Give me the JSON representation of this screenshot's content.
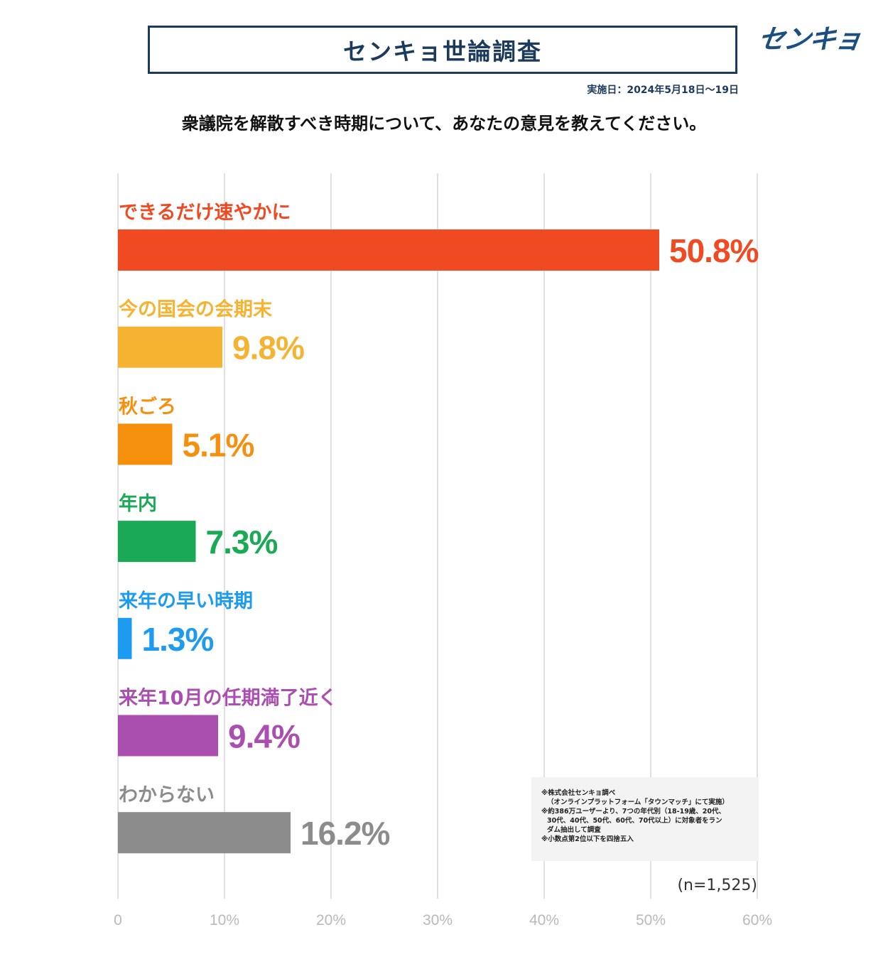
{
  "header": {
    "title": "センキョ世論調査",
    "logo_text": "センキョ",
    "date": "実施日：2024年5月18日～19日",
    "question": "衆議院を解散すべき時期について、あなたの意見を教えてください。"
  },
  "chart_data": {
    "type": "bar",
    "orientation": "horizontal",
    "categories": [
      "できるだけ速やかに",
      "今の国会の会期末",
      "秋ごろ",
      "年内",
      "来年の早い時期",
      "来年10月の任期満了近く",
      "わからない"
    ],
    "values": [
      50.8,
      9.8,
      5.1,
      7.3,
      1.3,
      9.4,
      16.2
    ],
    "value_labels": [
      "50.8%",
      "9.8%",
      "5.1%",
      "7.3%",
      "1.3%",
      "9.4%",
      "16.2%"
    ],
    "colors": [
      "#f04a23",
      "#f6b332",
      "#f5900e",
      "#1aaa55",
      "#1d9bf0",
      "#aa4fb0",
      "#8c8c8c"
    ],
    "xlim": [
      0,
      60
    ],
    "xticks": [
      "0",
      "10%",
      "20%",
      "30%",
      "40%",
      "50%",
      "60%"
    ],
    "grid": true,
    "sample_size": "(n=1,525)"
  },
  "notes": [
    "※株式会社センキョ調べ",
    "（オンラインプラットフォーム「タウンマッチ」にて実施）",
    "※約386万ユーザーより、7つの年代別（18-19歳、20代、",
    "30代、40代、50代、60代、70代以上）に対象者をラン",
    "ダム抽出して調査",
    "※小数点第2位以下を四捨五入"
  ]
}
